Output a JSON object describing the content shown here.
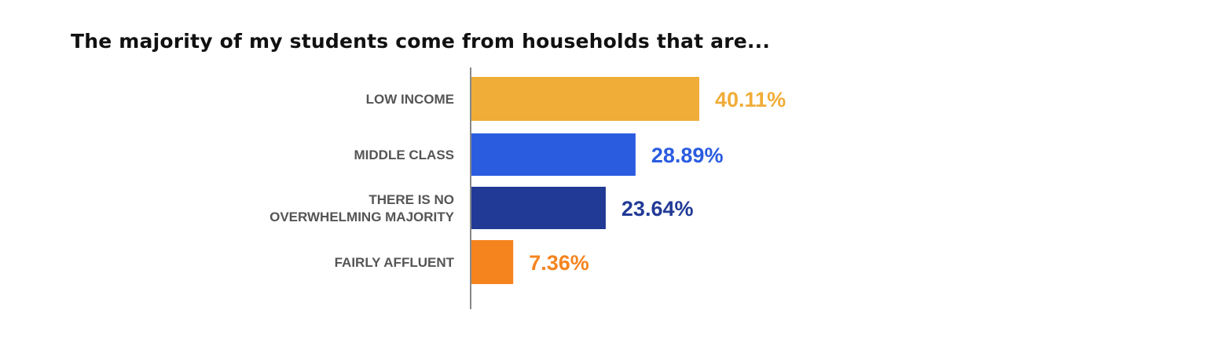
{
  "chart_data": {
    "type": "bar",
    "orientation": "horizontal",
    "title": "The majority of my students come from households that are...",
    "xlabel": "",
    "ylabel": "",
    "xlim": [
      0,
      100
    ],
    "grid": false,
    "legend": "none",
    "categories": [
      [
        "LOW INCOME"
      ],
      [
        "MIDDLE CLASS"
      ],
      [
        "THERE IS NO",
        "OVERWHELMING MAJORITY"
      ],
      [
        "FAIRLY AFFLUENT"
      ]
    ],
    "values": [
      40.11,
      28.89,
      23.64,
      7.36
    ],
    "value_labels": [
      "40.11%",
      "28.89%",
      "23.64%",
      "7.36%"
    ],
    "colors": [
      "#F0AD38",
      "#2A5CE0",
      "#213A96",
      "#F5841F"
    ],
    "axis_color": "#888888"
  }
}
